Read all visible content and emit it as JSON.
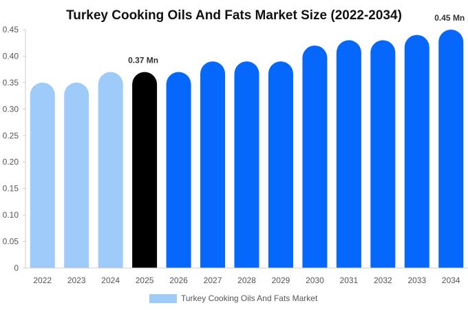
{
  "chart_data": {
    "type": "bar",
    "title": "Turkey Cooking Oils And Fats Market Size (2022-2034)",
    "categories": [
      "2022",
      "2023",
      "2024",
      "2025",
      "2026",
      "2027",
      "2028",
      "2029",
      "2030",
      "2031",
      "2032",
      "2033",
      "2034"
    ],
    "series": [
      {
        "name": "Turkey Cooking Oils And Fats Market",
        "values": [
          0.35,
          0.35,
          0.37,
          0.37,
          0.37,
          0.39,
          0.39,
          0.39,
          0.42,
          0.43,
          0.43,
          0.44,
          0.45
        ]
      }
    ],
    "bar_colors": [
      "#9fcbfb",
      "#9fcbfb",
      "#9fcbfb",
      "#000000",
      "#0567fb",
      "#0567fb",
      "#0567fb",
      "#0567fb",
      "#0567fb",
      "#0567fb",
      "#0567fb",
      "#0567fb",
      "#0567fb"
    ],
    "data_labels": [
      {
        "index": 3,
        "text": "0.37 Mn"
      },
      {
        "index": 12,
        "text": "0.45 Mn"
      }
    ],
    "y_ticks": [
      "0",
      "0.05",
      "0.10",
      "0.15",
      "0.20",
      "0.25",
      "0.30",
      "0.35",
      "0.40",
      "0.45"
    ],
    "ylim": [
      0,
      0.45
    ],
    "xlabel": "",
    "ylabel": "",
    "grid": false,
    "legend": {
      "position": "bottom",
      "label": "Turkey Cooking Oils And Fats Market",
      "color": "#9fcbfb"
    },
    "axis_color": "#cccccc"
  }
}
